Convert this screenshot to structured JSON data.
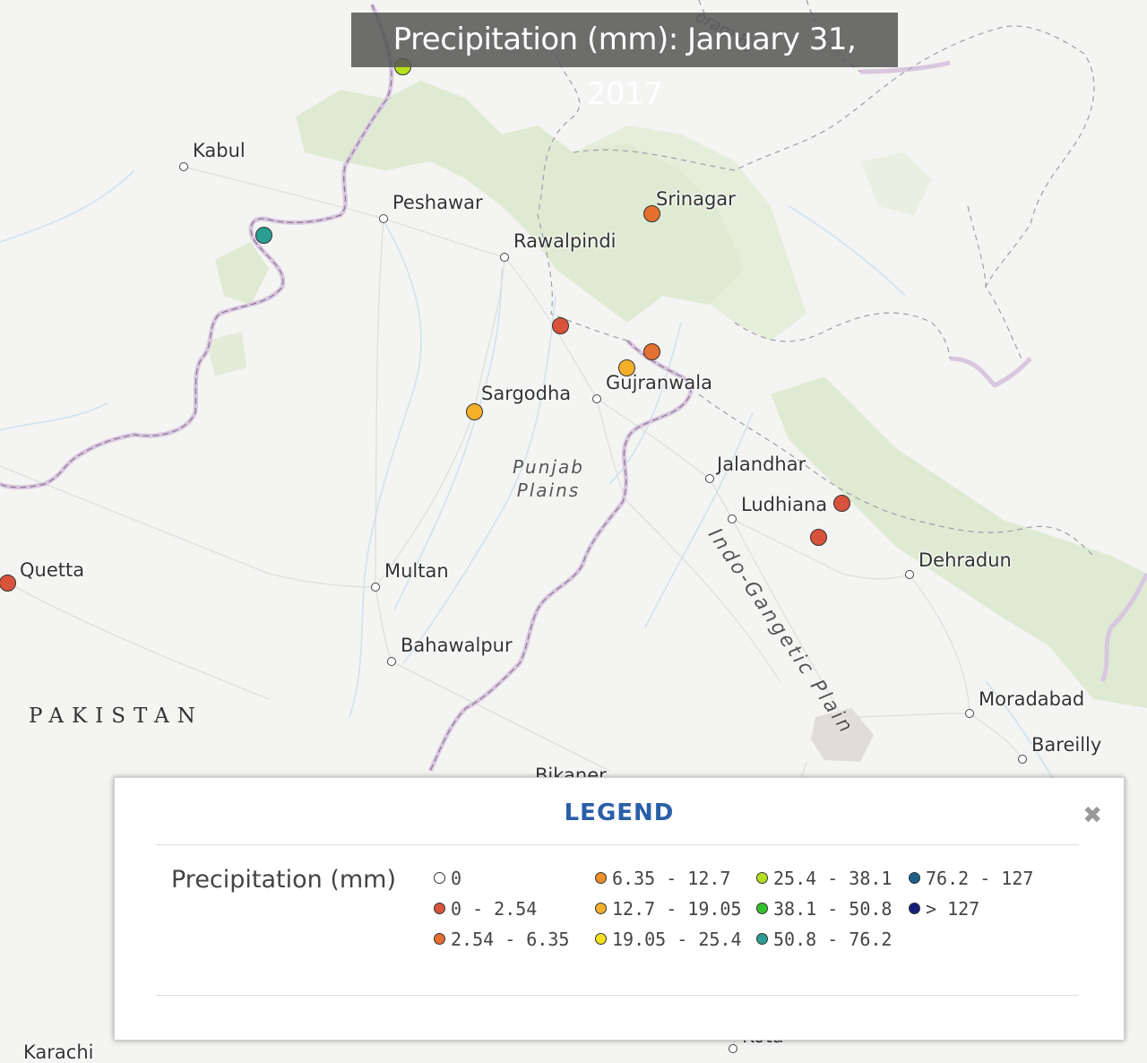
{
  "title": "Precipitation (mm): January 31, 2017",
  "country_label": "PAKISTAN",
  "regions": [
    {
      "id": "punjab-plains",
      "lines": [
        "Punjab",
        "Plains"
      ]
    },
    {
      "id": "indo-gangetic",
      "text": "Indo-Gangetic Plain"
    }
  ],
  "cities": [
    {
      "id": "kabul",
      "name": "Kabul"
    },
    {
      "id": "peshawar",
      "name": "Peshawar"
    },
    {
      "id": "rawalpindi",
      "name": "Rawalpindi"
    },
    {
      "id": "srinagar",
      "name": "Srinagar"
    },
    {
      "id": "sargodha",
      "name": "Sargodha"
    },
    {
      "id": "gujranwala",
      "name": "Gujranwala"
    },
    {
      "id": "jalandhar",
      "name": "Jalandhar"
    },
    {
      "id": "ludhiana",
      "name": "Ludhiana"
    },
    {
      "id": "dehradun",
      "name": "Dehradun"
    },
    {
      "id": "quetta",
      "name": "Quetta"
    },
    {
      "id": "multan",
      "name": "Multan"
    },
    {
      "id": "bahawalpur",
      "name": "Bahawalpur"
    },
    {
      "id": "moradabad",
      "name": "Moradabad"
    },
    {
      "id": "bareilly",
      "name": "Bareilly"
    },
    {
      "id": "bikaner",
      "name": "Bikaner"
    },
    {
      "id": "karachi",
      "name": "Karachi"
    },
    {
      "id": "kota",
      "name": "Kota"
    }
  ],
  "legend": {
    "title": "LEGEND",
    "close_label": "✖",
    "variable_label": "Precipitation (mm)",
    "items": [
      {
        "label": "0",
        "color": "#ffffff"
      },
      {
        "label": "0 - 2.54",
        "color": "#d9523b"
      },
      {
        "label": "2.54 - 6.35",
        "color": "#e5702f"
      },
      {
        "label": "6.35 - 12.7",
        "color": "#ef8f2a"
      },
      {
        "label": "12.7 - 19.05",
        "color": "#f4b02a"
      },
      {
        "label": "19.05 - 25.4",
        "color": "#f4e21f"
      },
      {
        "label": "25.4 - 38.1",
        "color": "#b7e01c"
      },
      {
        "label": "38.1 - 50.8",
        "color": "#33c22b"
      },
      {
        "label": "50.8 - 76.2",
        "color": "#2a9e92"
      },
      {
        "label": "76.2 - 127",
        "color": "#1e5f8a"
      },
      {
        "label": "> 127",
        "color": "#14207a"
      }
    ]
  },
  "stations": [
    {
      "id": "station-north-border",
      "bin": "25.4 - 38.1",
      "color": "#b7e01c"
    },
    {
      "id": "station-afghan-border",
      "bin": "50.8 - 76.2",
      "color": "#2a9e92"
    },
    {
      "id": "station-srinagar",
      "bin": "2.54 - 6.35",
      "color": "#e5702f"
    },
    {
      "id": "station-jhelum",
      "bin": "0 - 2.54",
      "color": "#d9523b"
    },
    {
      "id": "station-sialkot",
      "bin": "2.54 - 6.35",
      "color": "#e5702f"
    },
    {
      "id": "station-gujranwala",
      "bin": "12.7 - 19.05",
      "color": "#f4b02a"
    },
    {
      "id": "station-sargodha",
      "bin": "12.7 - 19.05",
      "color": "#f4b02a"
    },
    {
      "id": "station-ludhiana-east",
      "bin": "0 - 2.54",
      "color": "#d9523b"
    },
    {
      "id": "station-ludhiana-south",
      "bin": "0 - 2.54",
      "color": "#d9523b"
    },
    {
      "id": "station-quetta",
      "bin": "0 - 2.54",
      "color": "#d9523b"
    }
  ],
  "colors": {
    "background": "#f4f4f2",
    "border": "#b79bc0",
    "forest": "#dde9cf",
    "legend_title": "#2a5fa8"
  }
}
